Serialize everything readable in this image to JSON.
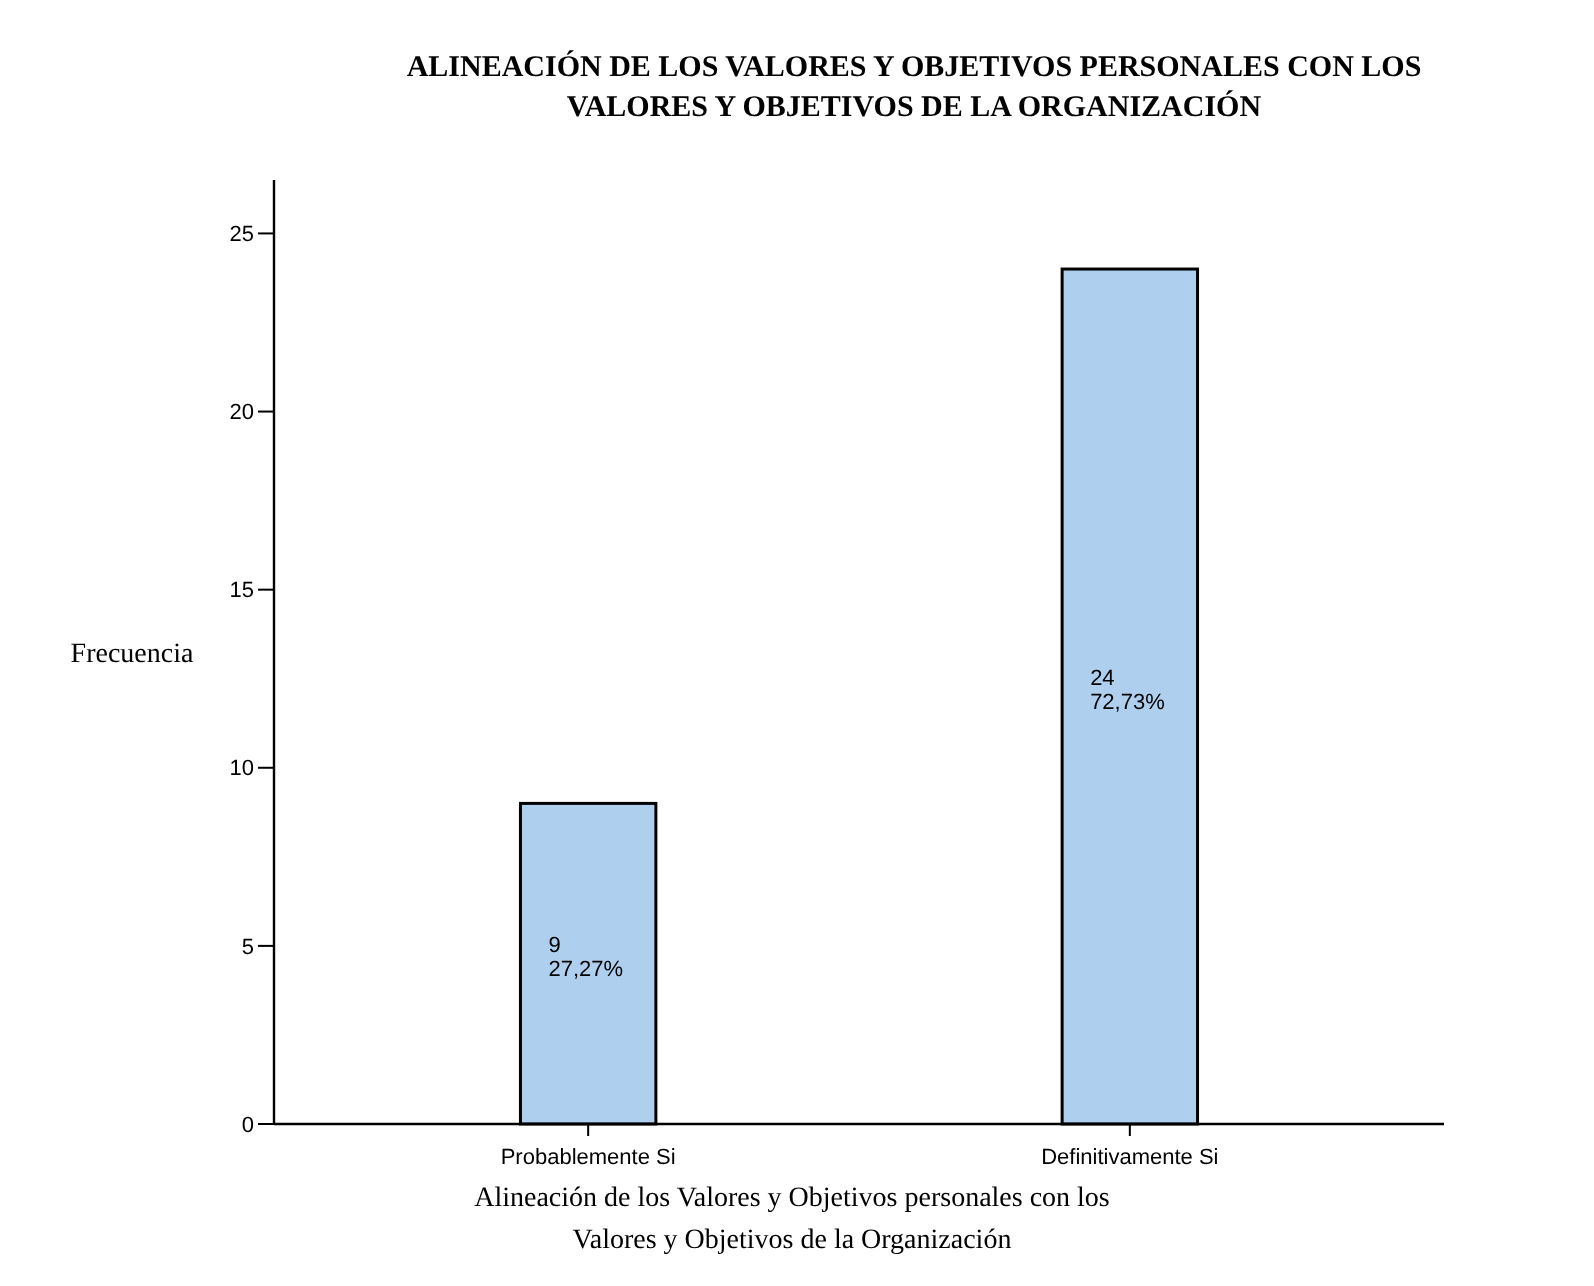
{
  "chart_data": {
    "type": "bar",
    "title": "ALINEACIÓN DE LOS VALORES Y OBJETIVOS PERSONALES CON LOS\nVALORES Y OBJETIVOS DE LA ORGANIZACIÓN",
    "xlabel": "Alineación de los Valores y Objetivos personales con los\nValores y Objetivos de la Organización",
    "ylabel": "Frecuencia",
    "categories": [
      "Probablemente Si",
      "Definitivamente Si"
    ],
    "values": [
      9,
      24
    ],
    "color": "#aed0ee",
    "value_labels": [
      "9\n27,27%",
      "24\n72,73%"
    ],
    "ylim": [
      0,
      26.5
    ],
    "yticks": [
      0,
      5,
      10,
      15,
      20,
      25
    ],
    "grid": false
  }
}
